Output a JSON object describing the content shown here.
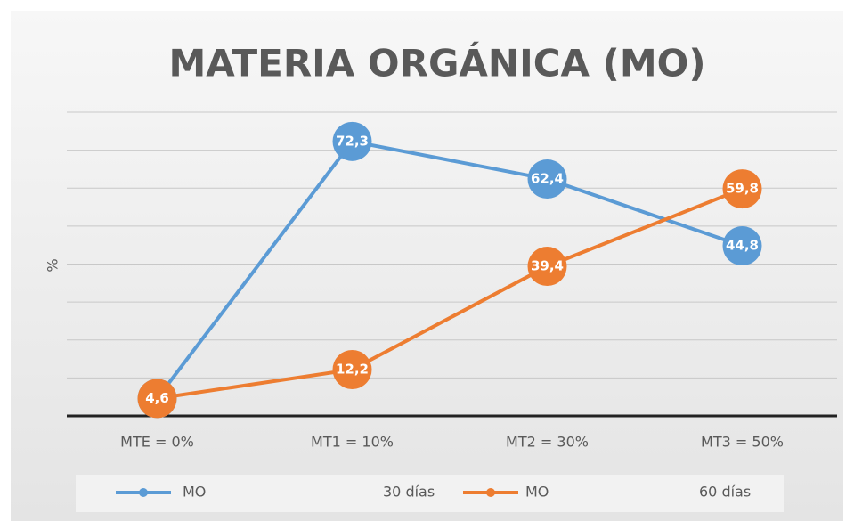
{
  "chart_data": {
    "type": "line",
    "title": "MATERIA ORGÁNICA (MO)",
    "y_label": "%",
    "categories": [
      "MTE = 0%",
      "MT1 = 10%",
      "MT2 = 30%",
      "MT3 = 50%"
    ],
    "series": [
      {
        "name": "MO",
        "period": "30 días",
        "color": "#5b9bd5",
        "values": [
          4.6,
          72.3,
          62.4,
          44.8
        ],
        "value_labels": [
          "4,6",
          "72,3",
          "62,4",
          "44,8"
        ]
      },
      {
        "name": "MO",
        "period": "60 días",
        "color": "#ed7d31",
        "values": [
          4.6,
          12.2,
          39.4,
          59.8
        ],
        "value_labels": [
          "4,6",
          "12,2",
          "39,4",
          "59,8"
        ]
      }
    ],
    "ylim": [
      0,
      80
    ],
    "yticks": [
      0,
      10,
      20,
      30,
      40,
      50,
      60,
      70,
      80
    ],
    "grid": true,
    "legend": "bottom"
  }
}
